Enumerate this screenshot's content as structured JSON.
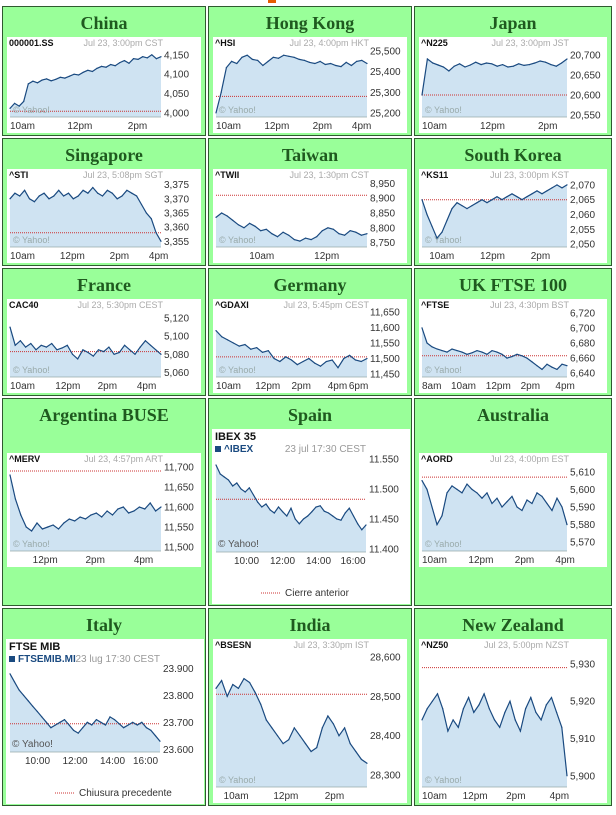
{
  "page": {
    "accent": "#99ff99",
    "border": "#2f5a2f",
    "title_color": "#1f5a1f",
    "fill": "#cfe3f2",
    "line": "#1a4a80",
    "ref_line": "#cc3333"
  },
  "cells": [
    {
      "title": "China",
      "chart_data": {
        "type": "area",
        "symbol": "000001.SS",
        "stamp": "Jul 23, 3:00pm CST",
        "watermark": "© Yahoo!",
        "ylim": [
          3990,
          4170
        ],
        "yticks": [
          "4,150",
          "4,100",
          "4,050",
          "4,000"
        ],
        "ytick_values": [
          4150,
          4100,
          4050,
          4000
        ],
        "ref": 4005,
        "xticks": [
          "10am",
          "12pm",
          "2pm"
        ],
        "xtick_pos": [
          0.0,
          0.38,
          0.78
        ],
        "values": [
          4012,
          4025,
          4018,
          4030,
          4075,
          4082,
          4078,
          4085,
          4088,
          4083,
          4087,
          4092,
          4090,
          4095,
          4100,
          4098,
          4105,
          4110,
          4107,
          4115,
          4120,
          4118,
          4125,
          4122,
          4130,
          4135,
          4128,
          4140,
          4138,
          4145,
          4142,
          4150,
          4140,
          4145
        ]
      }
    },
    {
      "title": "Hong Kong",
      "chart_data": {
        "type": "area",
        "symbol": "^HSI",
        "stamp": "Jul 23, 4:00pm HKT",
        "watermark": "© Yahoo!",
        "ylim": [
          25180,
          25520
        ],
        "yticks": [
          "25,500",
          "25,400",
          "25,300",
          "25,200"
        ],
        "ytick_values": [
          25500,
          25400,
          25300,
          25200
        ],
        "ref": 25280,
        "xticks": [
          "10am",
          "12pm",
          "2pm",
          "4pm"
        ],
        "xtick_pos": [
          0.0,
          0.32,
          0.64,
          0.9
        ],
        "values": [
          25200,
          25300,
          25420,
          25450,
          25440,
          25470,
          25480,
          25460,
          25455,
          25430,
          25450,
          25470,
          25465,
          25480,
          25475,
          25470,
          25460,
          25455,
          25445,
          25440,
          25450,
          25435,
          25440,
          25430,
          25425,
          25445,
          25430,
          25450,
          25455,
          25440
        ]
      }
    },
    {
      "title": "Japan",
      "chart_data": {
        "type": "area",
        "symbol": "^N225",
        "stamp": "Jul 23, 3:00pm JST",
        "watermark": "© Yahoo!",
        "ylim": [
          20545,
          20720
        ],
        "yticks": [
          "20,700",
          "20,650",
          "20,600",
          "20,550"
        ],
        "ytick_values": [
          20700,
          20650,
          20600,
          20550
        ],
        "ref": 20600,
        "xticks": [
          "10am",
          "12pm",
          "2pm"
        ],
        "xtick_pos": [
          0.0,
          0.4,
          0.8
        ],
        "values": [
          20600,
          20690,
          20680,
          20675,
          20670,
          20660,
          20672,
          20678,
          20670,
          20675,
          20682,
          20676,
          20680,
          20678,
          20672,
          20676,
          20670,
          20672,
          20678,
          20674,
          20676,
          20680,
          20685,
          20682,
          20676,
          20672,
          20680,
          20690
        ]
      }
    },
    {
      "title": "Singapore",
      "chart_data": {
        "type": "area",
        "symbol": "^STI",
        "stamp": "Jul 23, 5:08pm SGT",
        "watermark": "© Yahoo!",
        "ylim": [
          3353,
          3377
        ],
        "yticks": [
          "3,375",
          "3,370",
          "3,365",
          "3,360",
          "3,355"
        ],
        "ytick_values": [
          3375,
          3370,
          3365,
          3360,
          3355
        ],
        "ref": 3358,
        "xticks": [
          "10am",
          "12pm",
          "2pm",
          "4pm"
        ],
        "xtick_pos": [
          0.0,
          0.33,
          0.66,
          0.92
        ],
        "values": [
          3370,
          3372,
          3371,
          3373,
          3370,
          3369,
          3371,
          3372,
          3370,
          3371,
          3373,
          3371,
          3372,
          3370,
          3371,
          3373,
          3372,
          3374,
          3372,
          3371,
          3373,
          3372,
          3370,
          3371,
          3373,
          3372,
          3371,
          3368,
          3365,
          3363,
          3358,
          3355
        ]
      }
    },
    {
      "title": "Taiwan",
      "chart_data": {
        "type": "area",
        "symbol": "^TWII",
        "stamp": "Jul 23, 1:30pm CST",
        "watermark": "© Yahoo!",
        "ylim": [
          8735,
          8965
        ],
        "yticks": [
          "8,950",
          "8,900",
          "8,850",
          "8,800",
          "8,750"
        ],
        "ytick_values": [
          8950,
          8900,
          8850,
          8800,
          8750
        ],
        "ref": 8910,
        "xticks": [
          "10am",
          "12pm"
        ],
        "xtick_pos": [
          0.22,
          0.65
        ],
        "values": [
          8835,
          8850,
          8840,
          8825,
          8810,
          8800,
          8815,
          8805,
          8790,
          8795,
          8780,
          8770,
          8785,
          8775,
          8760,
          8755,
          8765,
          8760,
          8770,
          8790,
          8800,
          8795,
          8780,
          8775,
          8790,
          8785,
          8775,
          8780
        ]
      }
    },
    {
      "title": "South Korea",
      "chart_data": {
        "type": "area",
        "symbol": "^KS11",
        "stamp": "Jul 23, 3:00pm KST",
        "watermark": "© Yahoo!",
        "ylim": [
          2049,
          2072
        ],
        "yticks": [
          "2,070",
          "2,065",
          "2,060",
          "2,055",
          "2,050"
        ],
        "ytick_values": [
          2070,
          2065,
          2060,
          2055,
          2050
        ],
        "ref": 2065,
        "xticks": [
          "10am",
          "12pm",
          "2pm"
        ],
        "xtick_pos": [
          0.05,
          0.4,
          0.75
        ],
        "values": [
          2065,
          2060,
          2056,
          2052,
          2054,
          2058,
          2062,
          2064,
          2063,
          2062,
          2063,
          2064,
          2065,
          2064,
          2065,
          2066,
          2065,
          2066,
          2067,
          2066,
          2065,
          2066,
          2067,
          2068,
          2067,
          2068,
          2069,
          2070,
          2069,
          2070
        ]
      }
    },
    {
      "title": "France",
      "chart_data": {
        "type": "area",
        "symbol": "CAC40",
        "stamp": "Jul 23, 5:30pm CEST",
        "watermark": "© Yahoo!",
        "ylim": [
          5055,
          5130
        ],
        "yticks": [
          "5,120",
          "5,100",
          "5,080",
          "5,060"
        ],
        "ytick_values": [
          5120,
          5100,
          5080,
          5060
        ],
        "ref": 5083,
        "xticks": [
          "10am",
          "12pm",
          "2pm",
          "4pm"
        ],
        "xtick_pos": [
          0.0,
          0.3,
          0.58,
          0.84
        ],
        "values": [
          5110,
          5090,
          5095,
          5088,
          5092,
          5085,
          5090,
          5088,
          5092,
          5085,
          5087,
          5090,
          5080,
          5075,
          5085,
          5082,
          5078,
          5085,
          5083,
          5088,
          5080,
          5082,
          5090,
          5085,
          5080,
          5088,
          5095,
          5090,
          5085,
          5080
        ]
      }
    },
    {
      "title": "Germany",
      "chart_data": {
        "type": "area",
        "symbol": "^GDAXI",
        "stamp": "Jul 23, 5:45pm CEST",
        "watermark": "© Yahoo!",
        "ylim": [
          11440,
          11660
        ],
        "yticks": [
          "11,650",
          "11,600",
          "11,550",
          "11,500",
          "11,450"
        ],
        "ytick_values": [
          11650,
          11600,
          11550,
          11500,
          11450
        ],
        "ref": 11505,
        "xticks": [
          "10am",
          "12pm",
          "2pm",
          "4pm",
          "6pm"
        ],
        "xtick_pos": [
          0.0,
          0.26,
          0.5,
          0.74,
          0.88
        ],
        "values": [
          11590,
          11570,
          11560,
          11550,
          11540,
          11545,
          11530,
          11535,
          11520,
          11525,
          11500,
          11490,
          11505,
          11495,
          11480,
          11490,
          11500,
          11485,
          11475,
          11490,
          11495,
          11470,
          11500,
          11510,
          11495,
          11490,
          11500
        ]
      }
    },
    {
      "title": "UK FTSE 100",
      "chart_data": {
        "type": "area",
        "symbol": "^FTSE",
        "stamp": "Jul 23, 4:30pm BST",
        "watermark": "© Yahoo!",
        "ylim": [
          6635,
          6725
        ],
        "yticks": [
          "6,720",
          "6,700",
          "6,680",
          "6,660",
          "6,640"
        ],
        "ytick_values": [
          6720,
          6700,
          6680,
          6660,
          6640
        ],
        "ref": 6663,
        "xticks": [
          "8am",
          "10am",
          "12pm",
          "2pm",
          "4pm"
        ],
        "xtick_pos": [
          0.0,
          0.2,
          0.44,
          0.68,
          0.92
        ],
        "values": [
          6700,
          6680,
          6675,
          6672,
          6670,
          6668,
          6672,
          6670,
          6668,
          6665,
          6667,
          6670,
          6668,
          6665,
          6670,
          6668,
          6665,
          6660,
          6662,
          6665,
          6663,
          6660,
          6655,
          6650,
          6645,
          6652,
          6648,
          6645,
          6652,
          6650
        ]
      }
    },
    {
      "title": "Argentina BUSE",
      "chart_data": {
        "type": "area",
        "symbol": "^MERV",
        "stamp": "Jul 23, 4:57pm ART",
        "watermark": "© Yahoo!",
        "ylim": [
          11490,
          11710
        ],
        "yticks": [
          "11,700",
          "11,650",
          "11,600",
          "11,550",
          "11,500"
        ],
        "ytick_values": [
          11700,
          11650,
          11600,
          11550,
          11500
        ],
        "ref": 11690,
        "xticks": [
          "12pm",
          "2pm",
          "4pm"
        ],
        "xtick_pos": [
          0.15,
          0.5,
          0.82
        ],
        "values": [
          11680,
          11620,
          11580,
          11550,
          11540,
          11560,
          11545,
          11550,
          11555,
          11545,
          11560,
          11570,
          11565,
          11575,
          11570,
          11580,
          11585,
          11575,
          11590,
          11580,
          11595,
          11600,
          11585,
          11590,
          11600,
          11595,
          11610,
          11590,
          11600
        ]
      }
    },
    {
      "title": "Spain",
      "chart_data": {
        "type": "area",
        "symbol": "IBEX 35",
        "subsymbol": "^IBEX",
        "stamp": "23 jul 17:30 CEST",
        "watermark": "© Yahoo!",
        "legend": "Cierre anterior",
        "ylim": [
          11395,
          11560
        ],
        "yticks": [
          "11.550",
          "11.500",
          "11.450",
          "11.400"
        ],
        "ytick_values": [
          11550,
          11500,
          11450,
          11400
        ],
        "ref": 11483,
        "xticks": [
          "10:00",
          "12:00",
          "14:00",
          "16:00"
        ],
        "xtick_pos": [
          0.12,
          0.36,
          0.6,
          0.83
        ],
        "values": [
          11540,
          11525,
          11520,
          11515,
          11505,
          11510,
          11500,
          11495,
          11502,
          11490,
          11478,
          11470,
          11475,
          11465,
          11460,
          11470,
          11462,
          11455,
          11468,
          11450,
          11442,
          11450,
          11455,
          11462,
          11470,
          11472,
          11463,
          11460,
          11455,
          11450,
          11448,
          11460,
          11468,
          11455,
          11442,
          11432,
          11440
        ]
      }
    },
    {
      "title": "Australia",
      "chart_data": {
        "type": "area",
        "symbol": "^AORD",
        "stamp": "Jul 23, 4:00pm EST",
        "watermark": "© Yahoo!",
        "ylim": [
          5565,
          5615
        ],
        "yticks": [
          "5,610",
          "5,600",
          "5,590",
          "5,580",
          "5,570"
        ],
        "ytick_values": [
          5610,
          5600,
          5590,
          5580,
          5570
        ],
        "ref": 5607,
        "xticks": [
          "10am",
          "12pm",
          "2pm",
          "4pm"
        ],
        "xtick_pos": [
          0.0,
          0.32,
          0.64,
          0.92
        ],
        "values": [
          5605,
          5600,
          5590,
          5580,
          5585,
          5598,
          5602,
          5600,
          5598,
          5603,
          5600,
          5598,
          5595,
          5598,
          5592,
          5595,
          5590,
          5593,
          5596,
          5590,
          5588,
          5594,
          5592,
          5598,
          5596,
          5592,
          5588,
          5595,
          5590,
          5580
        ]
      }
    },
    {
      "title": "Italy",
      "chart_data": {
        "type": "area",
        "symbol": "FTSE MIB",
        "subsymbol": "FTSEMIB.MI",
        "stamp": "23 lug 17:30 CEST",
        "watermark": "© Yahoo!",
        "legend": "Chiusura precedente",
        "ylim": [
          23590,
          23920
        ],
        "yticks": [
          "23.900",
          "23.800",
          "23.700",
          "23.600"
        ],
        "ytick_values": [
          23900,
          23800,
          23700,
          23600
        ],
        "ref": 23695,
        "xticks": [
          "10:00",
          "12:00",
          "14:00",
          "16:00"
        ],
        "xtick_pos": [
          0.1,
          0.35,
          0.6,
          0.82
        ],
        "values": [
          23880,
          23850,
          23820,
          23800,
          23780,
          23760,
          23740,
          23720,
          23700,
          23680,
          23690,
          23700,
          23710,
          23690,
          23670,
          23660,
          23680,
          23700,
          23690,
          23710,
          23700,
          23690,
          23720,
          23710,
          23695,
          23680,
          23690,
          23700,
          23690,
          23700,
          23680,
          23670,
          23650,
          23630
        ]
      }
    },
    {
      "title": "India",
      "chart_data": {
        "type": "area",
        "symbol": "^BSESN",
        "stamp": "Jul 23, 3:30pm IST",
        "watermark": "© Yahoo!",
        "ylim": [
          28270,
          28620
        ],
        "yticks": [
          "28,600",
          "28,500",
          "28,400",
          "28,300"
        ],
        "ytick_values": [
          28600,
          28500,
          28400,
          28300
        ],
        "ref": 28505,
        "xticks": [
          "10am",
          "12pm",
          "2pm"
        ],
        "xtick_pos": [
          0.05,
          0.38,
          0.72
        ],
        "values": [
          28520,
          28540,
          28500,
          28530,
          28520,
          28545,
          28535,
          28510,
          28480,
          28440,
          28420,
          28400,
          28380,
          28390,
          28420,
          28400,
          28380,
          28360,
          28370,
          28420,
          28450,
          28430,
          28400,
          28420,
          28380,
          28360,
          28340,
          28330
        ]
      }
    },
    {
      "title": "New Zealand",
      "chart_data": {
        "type": "area",
        "symbol": "^NZ50",
        "stamp": "Jul 23, 5:00pm NZST",
        "watermark": "© Yahoo!",
        "ylim": [
          5897,
          5934
        ],
        "yticks": [
          "5,930",
          "5,920",
          "5,910",
          "5,900"
        ],
        "ytick_values": [
          5930,
          5920,
          5910,
          5900
        ],
        "ref": 5929,
        "xticks": [
          "10am",
          "12pm",
          "2pm",
          "4pm"
        ],
        "xtick_pos": [
          0.0,
          0.28,
          0.58,
          0.88
        ],
        "values": [
          5915,
          5918,
          5920,
          5922,
          5918,
          5912,
          5915,
          5913,
          5918,
          5921,
          5917,
          5919,
          5922,
          5918,
          5915,
          5913,
          5917,
          5920,
          5915,
          5912,
          5918,
          5921,
          5917,
          5915,
          5919,
          5921,
          5917,
          5913,
          5900
        ]
      }
    }
  ]
}
